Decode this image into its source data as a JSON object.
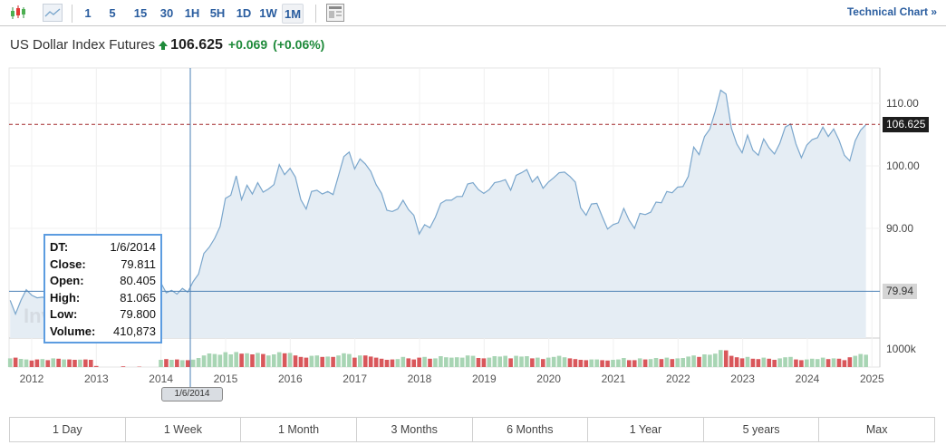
{
  "toolbar": {
    "intervals": [
      "1",
      "5",
      "15",
      "30",
      "1H",
      "5H",
      "1D",
      "1W",
      "1M"
    ],
    "selected": "1M",
    "technical_chart": "Technical Chart »",
    "icons": [
      "candlestick-chart-icon",
      "line-chart-icon",
      "table-view-icon"
    ]
  },
  "header": {
    "name": "US Dollar Index Futures",
    "price": "106.625",
    "change": "+0.069",
    "change_pct": "(+0.06%)",
    "direction": "up",
    "up_color": "#1e8a3a"
  },
  "tooltip": {
    "rows": [
      {
        "k": "DT:",
        "v": "1/6/2014"
      },
      {
        "k": "Close:",
        "v": "79.811"
      },
      {
        "k": "Open:",
        "v": "80.405"
      },
      {
        "k": "High:",
        "v": "81.065"
      },
      {
        "k": "Low:",
        "v": "79.800"
      },
      {
        "k": "Volume:",
        "v": "410,873"
      }
    ]
  },
  "crosshair": {
    "date_label": "1/6/2014",
    "price_label": "79.94",
    "price": 79.94
  },
  "last_price_label": "106.625",
  "watermark": "Investing",
  "ranges": [
    "1 Day",
    "1 Week",
    "1 Month",
    "3 Months",
    "6 Months",
    "1 Year",
    "5 years",
    "Max"
  ],
  "chart_data": {
    "type": "area",
    "start": "2011-09",
    "frequency": "monthly",
    "x_ticks": [
      "2012",
      "2013",
      "2014",
      "2015",
      "2016",
      "2017",
      "2018",
      "2019",
      "2020",
      "2021",
      "2022",
      "2023",
      "2024",
      "2025"
    ],
    "y_ticks": [
      "90.00",
      "100.00",
      "110.00"
    ],
    "volume_tick": "1000k",
    "last_price": 106.625,
    "line_color": "#7aa6cc",
    "fill_color": "#e5edf4",
    "up_color": "#a8d5b4",
    "down_color": "#d9575b",
    "last_line_color": "#a3282b",
    "close": [
      78.5,
      76.3,
      78.5,
      80.2,
      79.3,
      78.9,
      79.0,
      78.8,
      83.2,
      81.6,
      82.6,
      81.2,
      79.9,
      80.2,
      80.1,
      79.8,
      79.2,
      82.1,
      83.0,
      82.0,
      83.2,
      83.1,
      81.5,
      82.1,
      80.2,
      80.2,
      80.7,
      80.2,
      81.3,
      79.7,
      80.1,
      79.5,
      80.4,
      79.8,
      81.5,
      82.7,
      86.0,
      87.0,
      88.4,
      90.3,
      94.8,
      95.3,
      98.4,
      94.6,
      96.9,
      95.5,
      97.3,
      95.8,
      96.3,
      97.0,
      100.2,
      98.6,
      99.6,
      98.2,
      94.6,
      93.1,
      95.9,
      96.1,
      95.5,
      95.9,
      95.4,
      98.4,
      101.5,
      102.2,
      99.5,
      101.1,
      100.3,
      99.1,
      97.0,
      95.6,
      92.9,
      92.7,
      93.1,
      94.5,
      93.0,
      92.1,
      89.1,
      90.6,
      90.1,
      91.8,
      94.0,
      94.5,
      94.5,
      95.1,
      95.1,
      97.1,
      97.3,
      96.2,
      95.6,
      96.2,
      97.3,
      97.5,
      97.8,
      96.1,
      98.5,
      98.9,
      99.4,
      97.4,
      98.3,
      96.4,
      97.4,
      98.1,
      98.9,
      99.0,
      98.3,
      97.4,
      93.3,
      92.1,
      93.9,
      94.0,
      91.9,
      89.9,
      90.6,
      90.9,
      93.2,
      91.3,
      90.0,
      92.4,
      92.2,
      92.6,
      94.2,
      94.1,
      95.9,
      95.7,
      96.6,
      96.7,
      98.3,
      103.0,
      101.8,
      104.7,
      105.9,
      108.7,
      112.1,
      111.5,
      106.0,
      103.5,
      102.1,
      104.9,
      102.5,
      101.7,
      104.3,
      102.9,
      101.9,
      103.6,
      106.2,
      106.7,
      103.5,
      101.3,
      103.3,
      104.2,
      104.5,
      106.2,
      104.7,
      105.9,
      104.1,
      101.7,
      100.8,
      104.0,
      105.7,
      106.6
    ],
    "volume_k": [
      480,
      520,
      450,
      420,
      360,
      420,
      440,
      380,
      480,
      460,
      420,
      420,
      400,
      410,
      420,
      400,
      60,
      0,
      0,
      0,
      0,
      40,
      0,
      0,
      20,
      0,
      0,
      0,
      400,
      440,
      400,
      420,
      380,
      380,
      410,
      500,
      640,
      750,
      720,
      680,
      820,
      700,
      830,
      740,
      760,
      700,
      780,
      720,
      640,
      700,
      820,
      760,
      780,
      640,
      560,
      520,
      620,
      640,
      560,
      580,
      560,
      640,
      760,
      720,
      520,
      640,
      640,
      580,
      520,
      460,
      400,
      420,
      440,
      560,
      480,
      420,
      520,
      560,
      460,
      480,
      600,
      540,
      520,
      540,
      520,
      640,
      620,
      500,
      480,
      520,
      600,
      580,
      620,
      480,
      620,
      580,
      600,
      480,
      520,
      440,
      520,
      560,
      620,
      540,
      480,
      440,
      400,
      380,
      420,
      420,
      380,
      360,
      400,
      420,
      500,
      380,
      380,
      480,
      420,
      440,
      500,
      440,
      520,
      440,
      480,
      500,
      580,
      640,
      560,
      700,
      680,
      740,
      940,
      920,
      620,
      540,
      480,
      560,
      460,
      440,
      520,
      460,
      400,
      480,
      540,
      560,
      420,
      380,
      420,
      460,
      440,
      520,
      440,
      480,
      460,
      380,
      540,
      620,
      720,
      680
    ]
  }
}
